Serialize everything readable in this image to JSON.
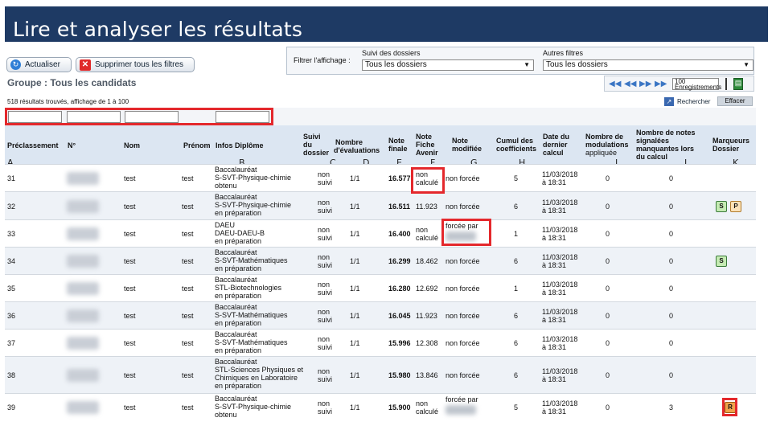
{
  "slide": {
    "title": "Lire et analyser les résultats"
  },
  "toolbar": {
    "refresh_label": "Actualiser",
    "clear_filters_label": "Supprimer tous les filtres"
  },
  "group": {
    "title": "Groupe : Tous les candidats"
  },
  "filters": {
    "label": "Filtrer l'affichage :",
    "suivi_label": "Suivi des dossiers",
    "suivi_value": "Tous les dossiers",
    "autres_label": "Autres filtres",
    "autres_value": "Tous les dossiers"
  },
  "pager": {
    "per_page": "100",
    "unit": "Enregistrements"
  },
  "results": {
    "summary": "518 résultats trouvés, affichage de 1 à 100",
    "search_label": "Rechercher",
    "clear_label": "Effacer"
  },
  "columns": {
    "rank": "Préclassement",
    "num": "N°",
    "nom": "Nom",
    "prenom": "Prénom",
    "diplome": "Infos Diplôme",
    "suivi": [
      "Suivi",
      "du",
      "dossier"
    ],
    "nb_eval": [
      "Nombre",
      "d'évaluations"
    ],
    "note_finale": [
      "Note",
      "finale"
    ],
    "note_fiche": [
      "Note",
      "Fiche",
      "Avenir"
    ],
    "note_modifiee": [
      "Note",
      "modifiée"
    ],
    "cumul": [
      "Cumul des",
      "coefficients"
    ],
    "date_calcul": [
      "Date du",
      "dernier",
      "calcul"
    ],
    "modulations": [
      "Nombre de",
      "modulations",
      "appliquée"
    ],
    "notes_manquantes": [
      "Nombre de notes",
      "signalées",
      "manquantes lors",
      "du calcul"
    ],
    "marqueurs": [
      "Marqueurs",
      "Dossier"
    ]
  },
  "column_letters": [
    "A",
    "B",
    "C",
    "D",
    "E",
    "F",
    "G",
    "H",
    "I",
    "J",
    "K"
  ],
  "rows": [
    {
      "rank": "31",
      "nom": "test",
      "prenom": "test",
      "diplome": [
        "Baccalauréat",
        "S-SVT-Physique-chimie",
        "obtenu"
      ],
      "suivi": [
        "non",
        "suivi"
      ],
      "eval": "1/1",
      "finale": "16.577",
      "fiche": [
        "non",
        "calculé"
      ],
      "modifiee": [
        "non forcée"
      ],
      "cumul": "5",
      "date": [
        "11/03/2018",
        "à 18:31"
      ],
      "modulations": "0",
      "manquantes": "0",
      "markers": []
    },
    {
      "rank": "32",
      "nom": "test",
      "prenom": "test",
      "diplome": [
        "Baccalauréat",
        "S-SVT-Physique-chimie",
        "en préparation"
      ],
      "suivi": [
        "non",
        "suivi"
      ],
      "eval": "1/1",
      "finale": "16.511",
      "fiche": [
        "11.923"
      ],
      "modifiee": [
        "non forcée"
      ],
      "cumul": "6",
      "date": [
        "11/03/2018",
        "à 18:31"
      ],
      "modulations": "0",
      "manquantes": "0",
      "markers": [
        "S",
        "P"
      ]
    },
    {
      "rank": "33",
      "nom": "test",
      "prenom": "test",
      "diplome": [
        "DAEU",
        "DAEU-DAEU-B",
        "en préparation"
      ],
      "suivi": [
        "non",
        "suivi"
      ],
      "eval": "1/1",
      "finale": "16.400",
      "fiche": [
        "non",
        "calculé"
      ],
      "modifiee": [
        "forcée par"
      ],
      "cumul": "1",
      "date": [
        "11/03/2018",
        "à 18:31"
      ],
      "modulations": "0",
      "manquantes": "0",
      "markers": []
    },
    {
      "rank": "34",
      "nom": "test",
      "prenom": "test",
      "diplome": [
        "Baccalauréat",
        "S-SVT-Mathématiques",
        "en préparation"
      ],
      "suivi": [
        "non",
        "suivi"
      ],
      "eval": "1/1",
      "finale": "16.299",
      "fiche": [
        "18.462"
      ],
      "modifiee": [
        "non forcée"
      ],
      "cumul": "6",
      "date": [
        "11/03/2018",
        "à 18:31"
      ],
      "modulations": "0",
      "manquantes": "0",
      "markers": [
        "S"
      ]
    },
    {
      "rank": "35",
      "nom": "test",
      "prenom": "test",
      "diplome": [
        "Baccalauréat",
        "STL-Biotechnologies",
        "en préparation"
      ],
      "suivi": [
        "non",
        "suivi"
      ],
      "eval": "1/1",
      "finale": "16.280",
      "fiche": [
        "12.692"
      ],
      "modifiee": [
        "non forcée"
      ],
      "cumul": "1",
      "date": [
        "11/03/2018",
        "à 18:31"
      ],
      "modulations": "0",
      "manquantes": "0",
      "markers": []
    },
    {
      "rank": "36",
      "nom": "test",
      "prenom": "test",
      "diplome": [
        "Baccalauréat",
        "S-SVT-Mathématiques",
        "en préparation"
      ],
      "suivi": [
        "non",
        "suivi"
      ],
      "eval": "1/1",
      "finale": "16.045",
      "fiche": [
        "11.923"
      ],
      "modifiee": [
        "non forcée"
      ],
      "cumul": "6",
      "date": [
        "11/03/2018",
        "à 18:31"
      ],
      "modulations": "0",
      "manquantes": "0",
      "markers": []
    },
    {
      "rank": "37",
      "nom": "test",
      "prenom": "test",
      "diplome": [
        "Baccalauréat",
        "S-SVT-Mathématiques",
        "en préparation"
      ],
      "suivi": [
        "non",
        "suivi"
      ],
      "eval": "1/1",
      "finale": "15.996",
      "fiche": [
        "12.308"
      ],
      "modifiee": [
        "non forcée"
      ],
      "cumul": "6",
      "date": [
        "11/03/2018",
        "à 18:31"
      ],
      "modulations": "0",
      "manquantes": "0",
      "markers": []
    },
    {
      "rank": "38",
      "nom": "test",
      "prenom": "test",
      "diplome": [
        "Baccalauréat",
        "STL-Sciences Physiques et",
        "Chimiques en Laboratoire",
        "en préparation"
      ],
      "suivi": [
        "non",
        "suivi"
      ],
      "eval": "1/1",
      "finale": "15.980",
      "fiche": [
        "13.846"
      ],
      "modifiee": [
        "non forcée"
      ],
      "cumul": "6",
      "date": [
        "11/03/2018",
        "à 18:31"
      ],
      "modulations": "0",
      "manquantes": "0",
      "markers": []
    },
    {
      "rank": "39",
      "nom": "test",
      "prenom": "test",
      "diplome": [
        "Baccalauréat",
        "S-SVT-Physique-chimie",
        "obtenu"
      ],
      "suivi": [
        "non",
        "suivi"
      ],
      "eval": "1/1",
      "finale": "15.900",
      "fiche": [
        "non",
        "calculé"
      ],
      "modifiee": [
        "forcée par"
      ],
      "cumul": "5",
      "date": [
        "11/03/2018",
        "à 18:31"
      ],
      "modulations": "0",
      "manquantes": "3",
      "markers": [
        "R"
      ]
    }
  ],
  "colors": {
    "banner": "#1e3a64",
    "header": "#dce6f2",
    "highlight": "#e4282c"
  }
}
